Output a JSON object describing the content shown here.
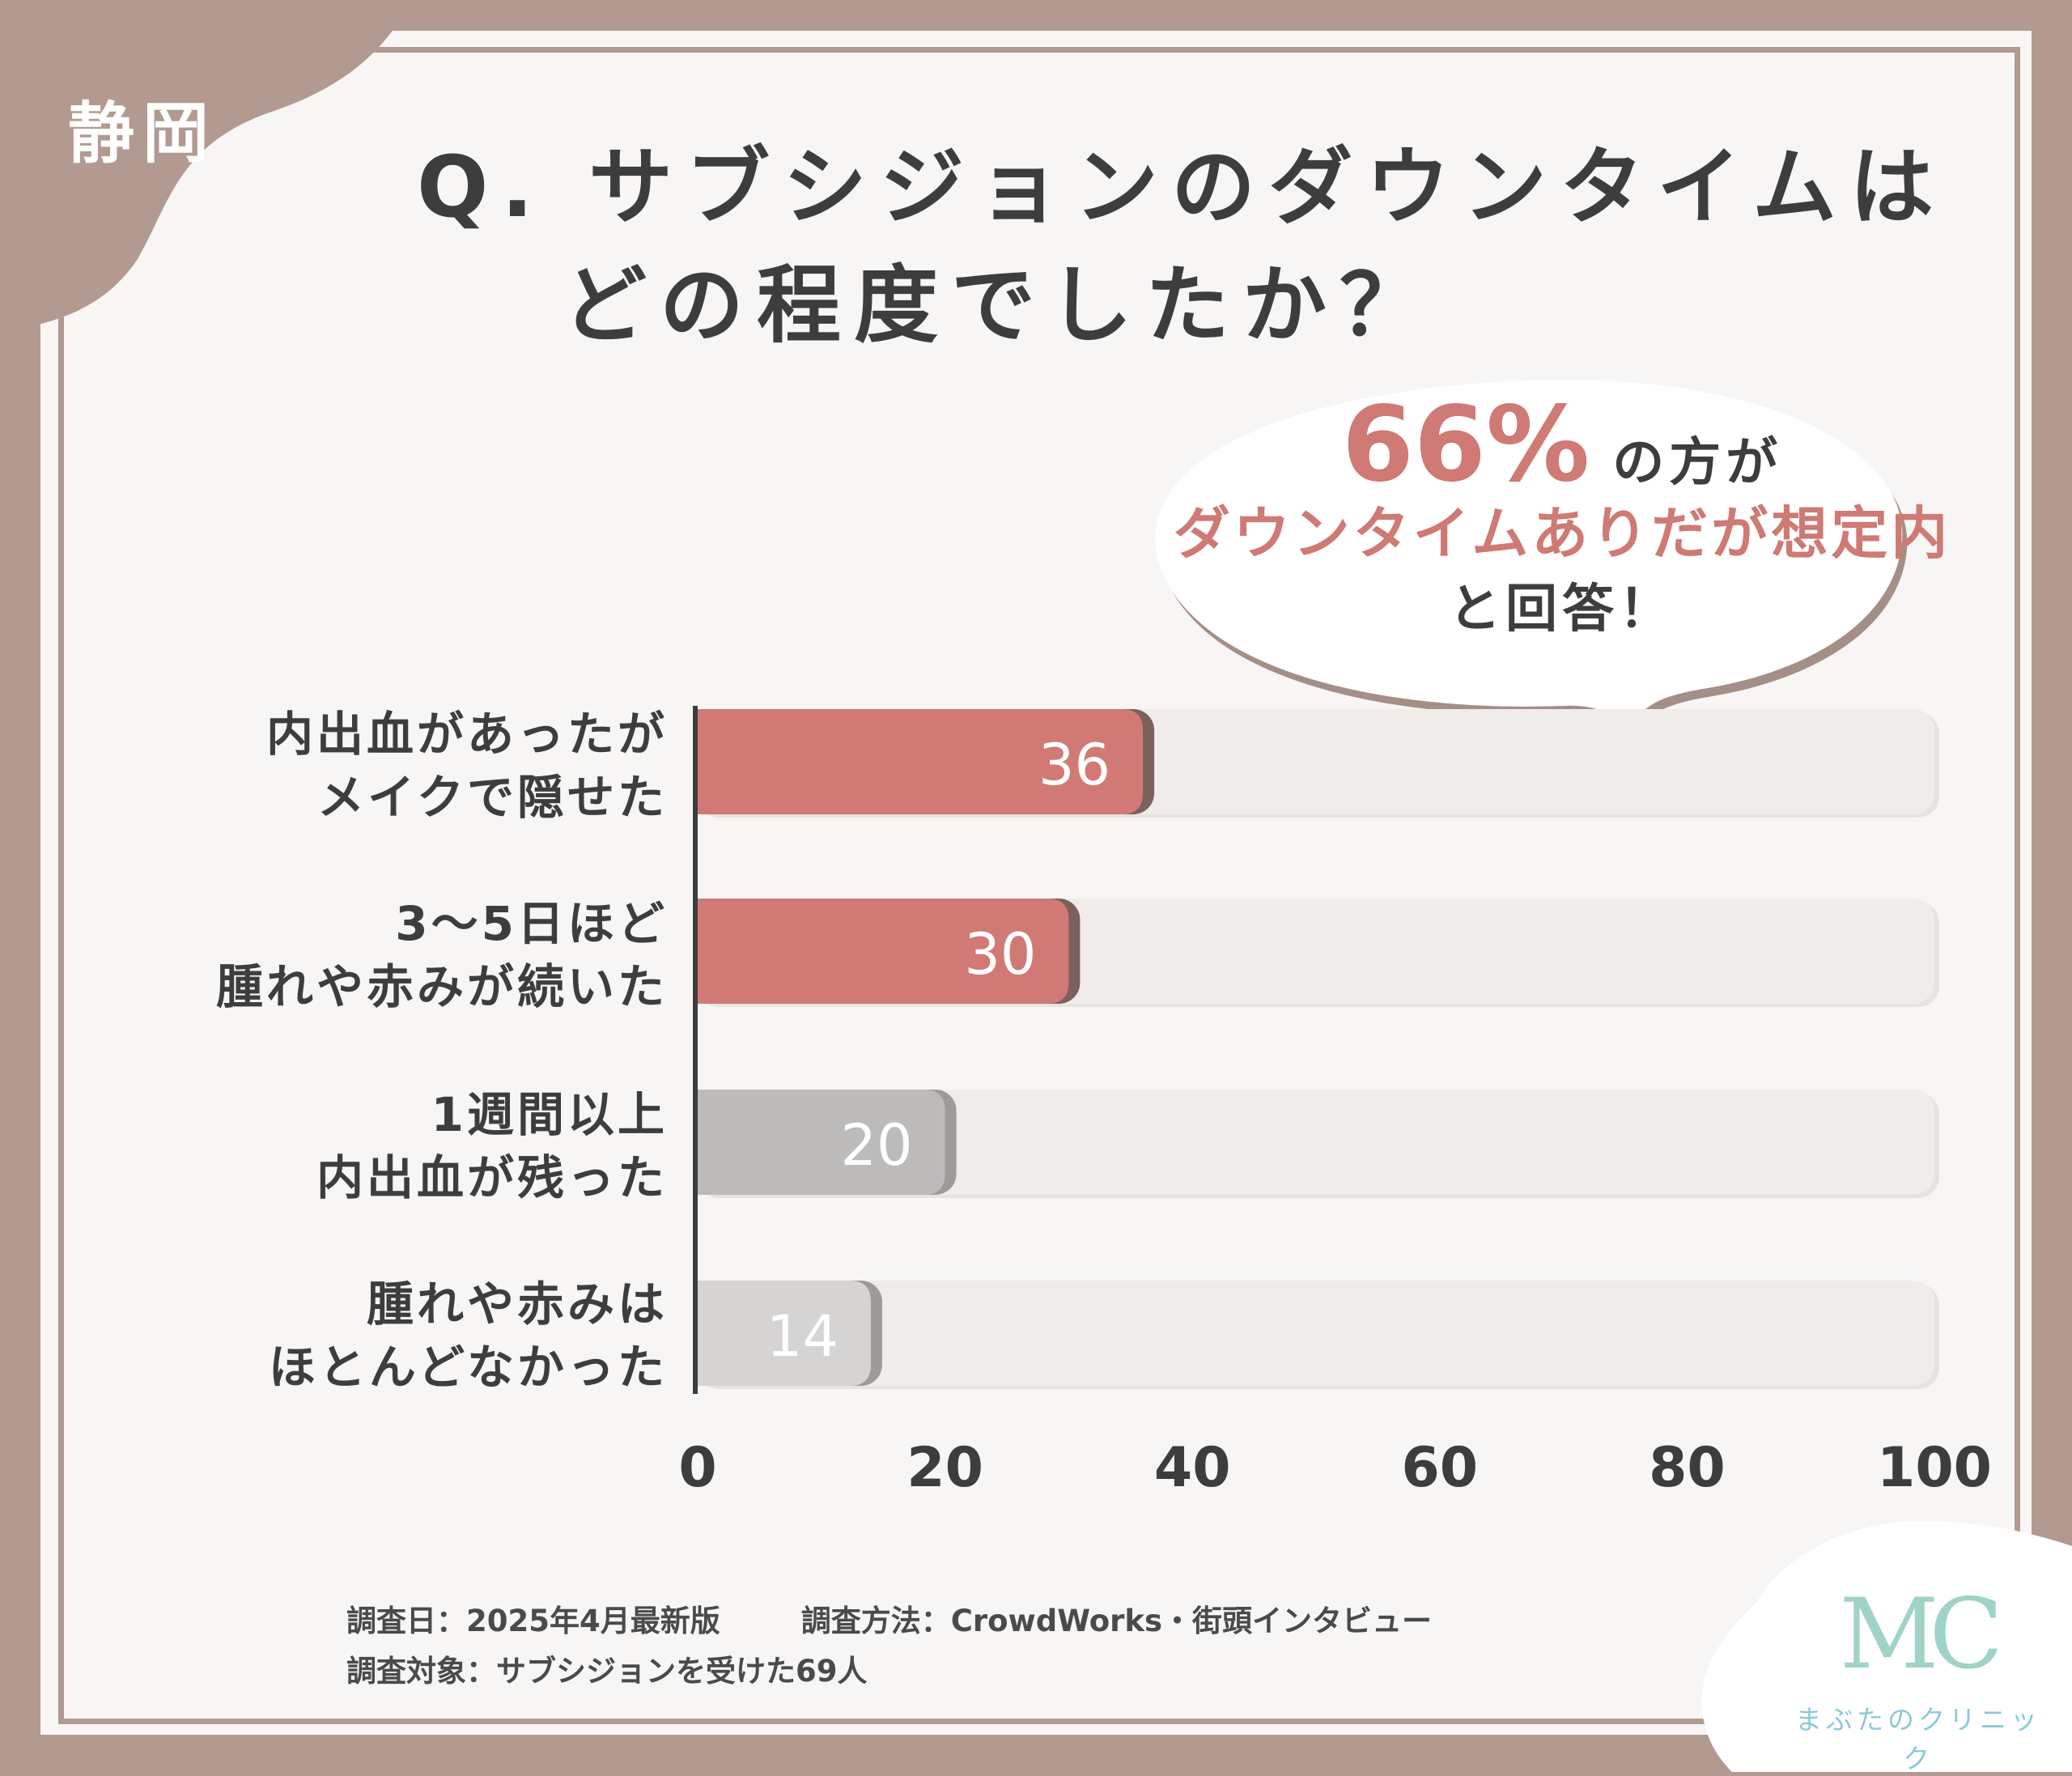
{
  "region_label": "静岡",
  "title": {
    "line1": "Q. サブシジョンのダウンタイムは",
    "line2": "どの程度でしたか？"
  },
  "callout": {
    "percent": "66%",
    "line1_suffix": "の方が",
    "line2": "ダウンタイムありだが想定内",
    "line3": "と回答！"
  },
  "chart_data": {
    "type": "bar",
    "orientation": "horizontal",
    "categories": [
      [
        "内出血があったが",
        "メイクで隠せた"
      ],
      [
        "3〜5日ほど",
        "腫れや赤みが続いた"
      ],
      [
        "1週間以上",
        "内出血が残った"
      ],
      [
        "腫れや赤みは",
        "ほとんどなかった"
      ]
    ],
    "values": [
      36,
      30,
      20,
      14
    ],
    "value_labels": [
      "36",
      "30",
      "20",
      "14"
    ],
    "xlim": [
      0,
      100
    ],
    "x_ticks": [
      "0",
      "20",
      "40",
      "60",
      "80",
      "100"
    ],
    "bar_colors": [
      "#d17a75",
      "#d17a75",
      "#bdbbba",
      "#d6d4d3"
    ],
    "track_color": "#efecea",
    "title": "",
    "xlabel": "",
    "ylabel": "",
    "grid": false
  },
  "footer": {
    "survey_date": "調査日：2025年4月最新版",
    "survey_method": "調査方法：CrowdWorks・街頭インタビュー",
    "survey_target": "調査対象：サブシジョンを受けた69人"
  },
  "logo": {
    "mark": "MC",
    "name": "まぶたのクリニック"
  }
}
